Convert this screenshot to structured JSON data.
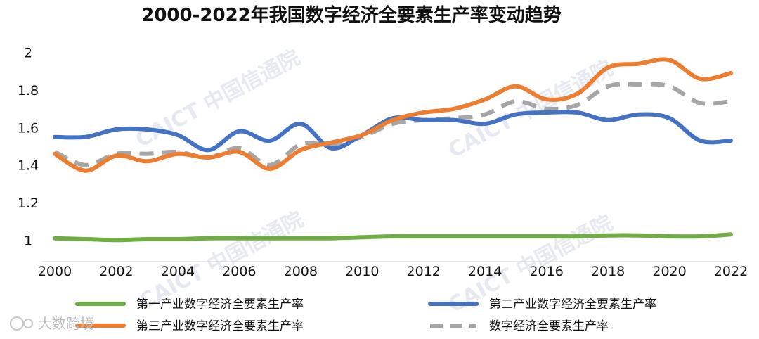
{
  "chart_data": {
    "type": "line",
    "title": "2000-2022年我国数字经济全要素生产率变动趋势",
    "xlabel": "",
    "ylabel": "",
    "ylim": [
      0.93,
      2.07
    ],
    "yticks": [
      "1",
      "1.2",
      "1.4",
      "1.6",
      "1.8",
      "2"
    ],
    "ytick_values": [
      1.0,
      1.2,
      1.4,
      1.6,
      1.8,
      2.0
    ],
    "x": [
      2000,
      2001,
      2002,
      2003,
      2004,
      2005,
      2006,
      2007,
      2008,
      2009,
      2010,
      2011,
      2012,
      2013,
      2014,
      2015,
      2016,
      2017,
      2018,
      2019,
      2020,
      2021,
      2022
    ],
    "xticks": [
      "2000",
      "2002",
      "2004",
      "2006",
      "2008",
      "2010",
      "2012",
      "2014",
      "2016",
      "2018",
      "2020",
      "2022"
    ],
    "xtick_values": [
      2000,
      2002,
      2004,
      2006,
      2008,
      2010,
      2012,
      2014,
      2016,
      2018,
      2020,
      2022
    ],
    "grid": false,
    "legend_position": "bottom",
    "series": [
      {
        "name": "第一产业数字经济全要素生产率",
        "color": "#70ad47",
        "dash": "solid",
        "values": [
          1.01,
          1.005,
          1.0,
          1.005,
          1.005,
          1.01,
          1.01,
          1.01,
          1.01,
          1.01,
          1.015,
          1.02,
          1.02,
          1.02,
          1.02,
          1.02,
          1.02,
          1.02,
          1.025,
          1.025,
          1.02,
          1.02,
          1.03
        ]
      },
      {
        "name": "第二产业数字经济全要素生产率",
        "color": "#4472c4",
        "dash": "solid",
        "values": [
          1.55,
          1.55,
          1.59,
          1.59,
          1.56,
          1.48,
          1.58,
          1.53,
          1.62,
          1.49,
          1.56,
          1.65,
          1.64,
          1.64,
          1.62,
          1.67,
          1.68,
          1.68,
          1.64,
          1.67,
          1.65,
          1.53,
          1.53
        ]
      },
      {
        "name": "第三产业数字经济全要素生产率",
        "color": "#ed7d31",
        "dash": "solid",
        "values": [
          1.46,
          1.37,
          1.45,
          1.42,
          1.46,
          1.44,
          1.47,
          1.38,
          1.48,
          1.52,
          1.56,
          1.64,
          1.68,
          1.7,
          1.75,
          1.82,
          1.75,
          1.78,
          1.92,
          1.94,
          1.96,
          1.86,
          1.89
        ]
      },
      {
        "name": "数字经济全要素生产率",
        "color": "#a6a6a6",
        "dash": "dashed",
        "values": [
          1.47,
          1.4,
          1.46,
          1.46,
          1.47,
          1.44,
          1.49,
          1.4,
          1.51,
          1.51,
          1.55,
          1.62,
          1.64,
          1.65,
          1.67,
          1.74,
          1.7,
          1.72,
          1.82,
          1.83,
          1.82,
          1.73,
          1.74
        ]
      }
    ]
  },
  "watermarks": [
    "CAICT 中国信通院",
    "CAICT 中国信通院",
    "CAICT 中国信通院",
    "CAICT 中国信通院"
  ],
  "brand": {
    "text": "大数跨境"
  }
}
